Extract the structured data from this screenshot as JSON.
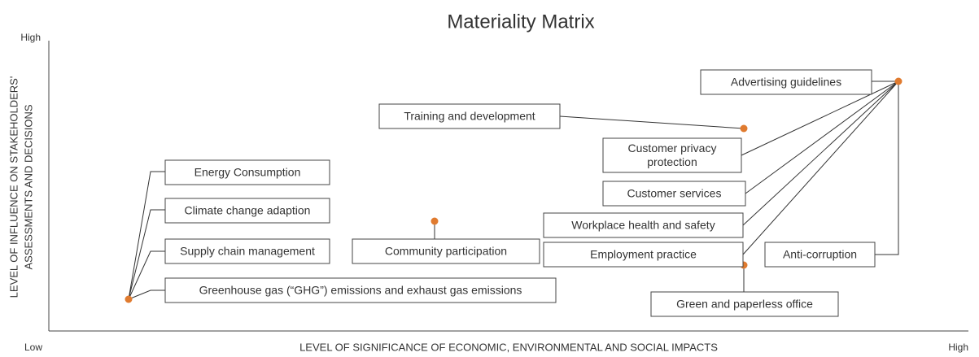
{
  "title": "Materiality Matrix",
  "y_axis": {
    "label": [
      "LEVEL OF INFLUENCE ON STAKEHOLDERS'",
      "ASSESSMENTS AND DECISIONS"
    ],
    "high": "High"
  },
  "x_axis": {
    "label": "LEVEL OF SIGNIFICANCE OF ECONOMIC, ENVIRONMENTAL AND SOCIAL IMPACTS",
    "low": "Low",
    "high": "High"
  },
  "nodes": [
    {
      "label": [
        "Energy Consumption"
      ]
    },
    {
      "label": [
        "Climate change adaption"
      ]
    },
    {
      "label": [
        "Supply chain management"
      ]
    },
    {
      "label": [
        "Greenhouse gas (“GHG”) emissions and exhaust gas emissions"
      ]
    },
    {
      "label": [
        "Community participation"
      ]
    },
    {
      "label": [
        "Training and development"
      ]
    },
    {
      "label": [
        "Customer privacy",
        "protection"
      ]
    },
    {
      "label": [
        "Customer services"
      ]
    },
    {
      "label": [
        "Workplace health and safety"
      ]
    },
    {
      "label": [
        "Employment practice"
      ]
    },
    {
      "label": [
        "Advertising guidelines"
      ]
    },
    {
      "label": [
        "Anti-corruption"
      ]
    },
    {
      "label": [
        "Green and paperless office"
      ]
    }
  ]
}
